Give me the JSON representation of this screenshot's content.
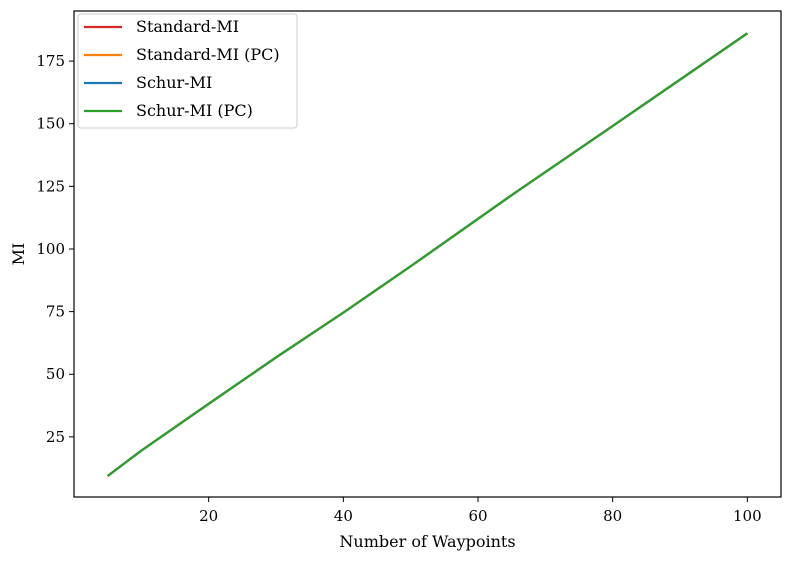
{
  "chart_data": {
    "type": "line",
    "title": "",
    "xlabel": "Number of Waypoints",
    "ylabel": "MI",
    "xlim": [
      0,
      105
    ],
    "ylim": [
      1.0,
      195.0
    ],
    "xticks": [
      20,
      40,
      60,
      80,
      100
    ],
    "yticks": [
      25,
      50,
      75,
      100,
      125,
      150,
      175
    ],
    "grid": false,
    "legend": "top-left",
    "x": [
      5,
      10,
      20,
      30,
      40,
      50,
      65,
      80,
      100
    ],
    "series": [
      {
        "name": "Standard-MI",
        "color": "#d62728",
        "values": [
          9.4,
          19.5,
          38.2,
          56.7,
          74.6,
          93.1,
          121.5,
          149.1,
          186.1
        ]
      },
      {
        "name": "Standard-MI (PC)",
        "color": "#ff7f0e",
        "values": [
          9.4,
          19.5,
          38.2,
          56.7,
          74.6,
          93.1,
          121.5,
          149.1,
          186.1
        ]
      },
      {
        "name": "Schur-MI",
        "color": "#1f77b4",
        "values": [
          9.4,
          19.5,
          38.2,
          56.7,
          74.6,
          93.1,
          121.5,
          149.1,
          186.1
        ]
      },
      {
        "name": "Schur-MI (PC)",
        "color": "#2ca02c",
        "values": [
          9.4,
          19.5,
          38.2,
          56.7,
          74.6,
          93.1,
          121.5,
          149.1,
          186.1
        ]
      }
    ]
  }
}
